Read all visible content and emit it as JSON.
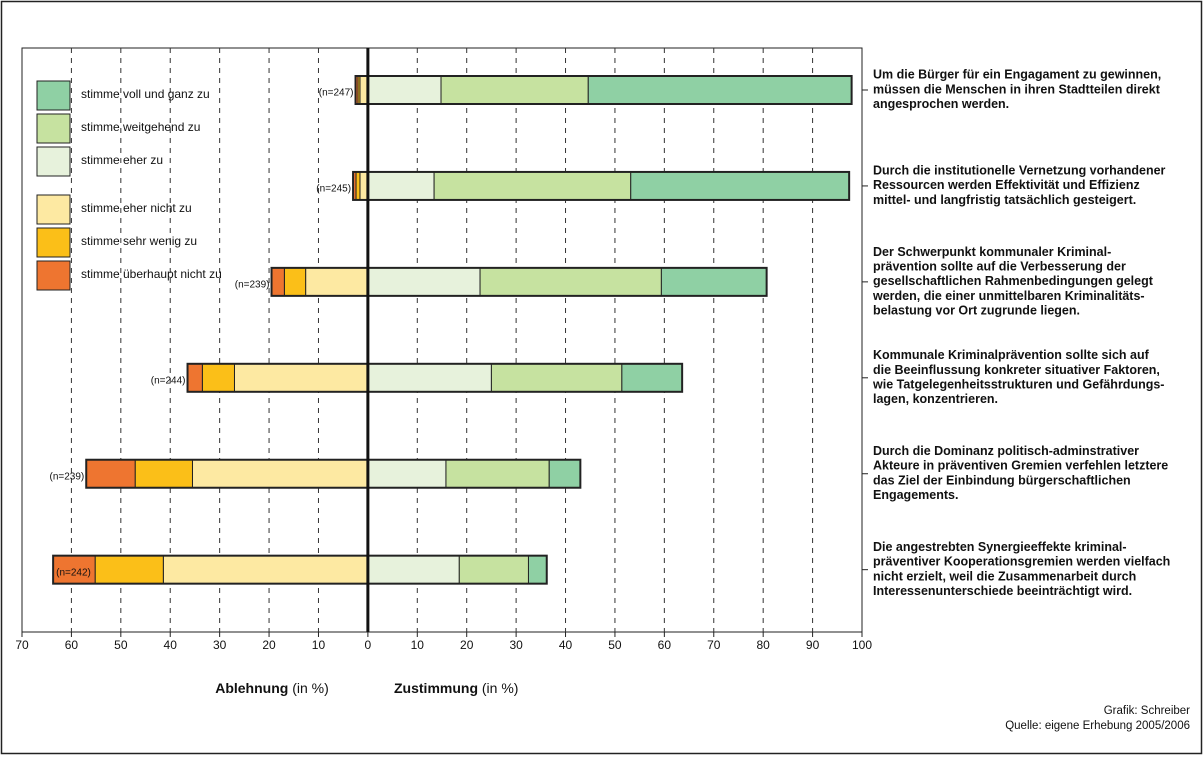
{
  "chart_data": {
    "type": "diverging_bar",
    "series": [
      {
        "name": "stimme voll und ganz zu",
        "color": "#8fd0a4",
        "side": "positive",
        "values": [
          53.3,
          44.2,
          21.3,
          12.2,
          6.3,
          3.7
        ]
      },
      {
        "name": "stimme weitgehend zu",
        "color": "#c6e2a0",
        "side": "positive",
        "values": [
          29.8,
          39.8,
          36.7,
          26.4,
          20.9,
          14.0
        ]
      },
      {
        "name": "stimme eher zu",
        "color": "#e7f2dc",
        "side": "positive",
        "values": [
          14.8,
          13.4,
          22.7,
          25.0,
          15.8,
          18.5
        ]
      },
      {
        "name": "stimme eher nicht zu",
        "color": "#fde9a2",
        "side": "negative",
        "values": [
          -1.6,
          -1.6,
          -12.6,
          -27.0,
          -35.5,
          -41.4
        ]
      },
      {
        "name": "stimme sehr wenig zu",
        "color": "#fbbf18",
        "side": "negative",
        "values": [
          -0.4,
          -0.8,
          -4.3,
          -6.5,
          -11.6,
          -13.8
        ]
      },
      {
        "name": "stimme überhaupt nicht zu",
        "color": "#ee7530",
        "side": "negative",
        "values": [
          -0.5,
          -0.6,
          -2.6,
          -3.0,
          -9.9,
          -8.5
        ]
      }
    ],
    "categories": [
      [
        "Um die Bürger für ein Engagament zu gewinnen,",
        "müssen die Menschen in ihren Stadtteilen direkt",
        "angesprochen werden."
      ],
      [
        "Durch die institutionelle Vernetzung vorhandener",
        "Ressourcen werden Effektivität und Effizienz",
        "mittel- und langfristig tatsächlich gesteigert."
      ],
      [
        "Der Schwerpunkt kommunaler Kriminal-",
        "prävention sollte auf die Verbesserung der",
        "gesellschaftlichen Rahmenbedingungen gelegt",
        "werden, die einer unmittelbaren Kriminalitäts-",
        "belastung vor Ort zugrunde liegen."
      ],
      [
        "Kommunale Kriminalprävention sollte sich auf",
        "die Beeinflussung konkreter situativer Faktoren,",
        "wie Tatgelegenheitsstrukturen und Gefährdungs-",
        "lagen, konzentrieren."
      ],
      [
        "Durch die Dominanz politisch-adminstrativer",
        "Akteure in präventiven Gremien verfehlen letztere",
        "das Ziel der Einbindung bürgerschaftlichen",
        "Engagements."
      ],
      [
        "Die angestrebten Synergieeffekte kriminal-",
        "präventiver Kooperationsgremien werden vielfach",
        "nicht erzielt, weil die Zusammenarbeit durch",
        "Interessenunterschiede beeinträchtigt wird."
      ]
    ],
    "n_labels": [
      "(n=247)",
      "(n=245)",
      "(n=239)",
      "(n=244)",
      "(n=239)",
      "(n=242)"
    ],
    "xlim": [
      -70,
      100
    ],
    "xticks": [
      {
        "value": -70,
        "label": "70"
      },
      {
        "value": -60,
        "label": "60"
      },
      {
        "value": -50,
        "label": "50"
      },
      {
        "value": -40,
        "label": "40"
      },
      {
        "value": -30,
        "label": "30"
      },
      {
        "value": -20,
        "label": "20"
      },
      {
        "value": -10,
        "label": "10"
      },
      0,
      10,
      20,
      30,
      40,
      50,
      60,
      70,
      80,
      90,
      100
    ],
    "grid": true,
    "x_label_negative": {
      "bold": "Ablehnung",
      "unit": "(in %)"
    },
    "x_label_positive": {
      "bold": "Zustimmung",
      "unit": "(in %)"
    },
    "credits": [
      "Grafik: Schreiber",
      "Quelle: eigene Erhebung 2005/2006"
    ]
  }
}
